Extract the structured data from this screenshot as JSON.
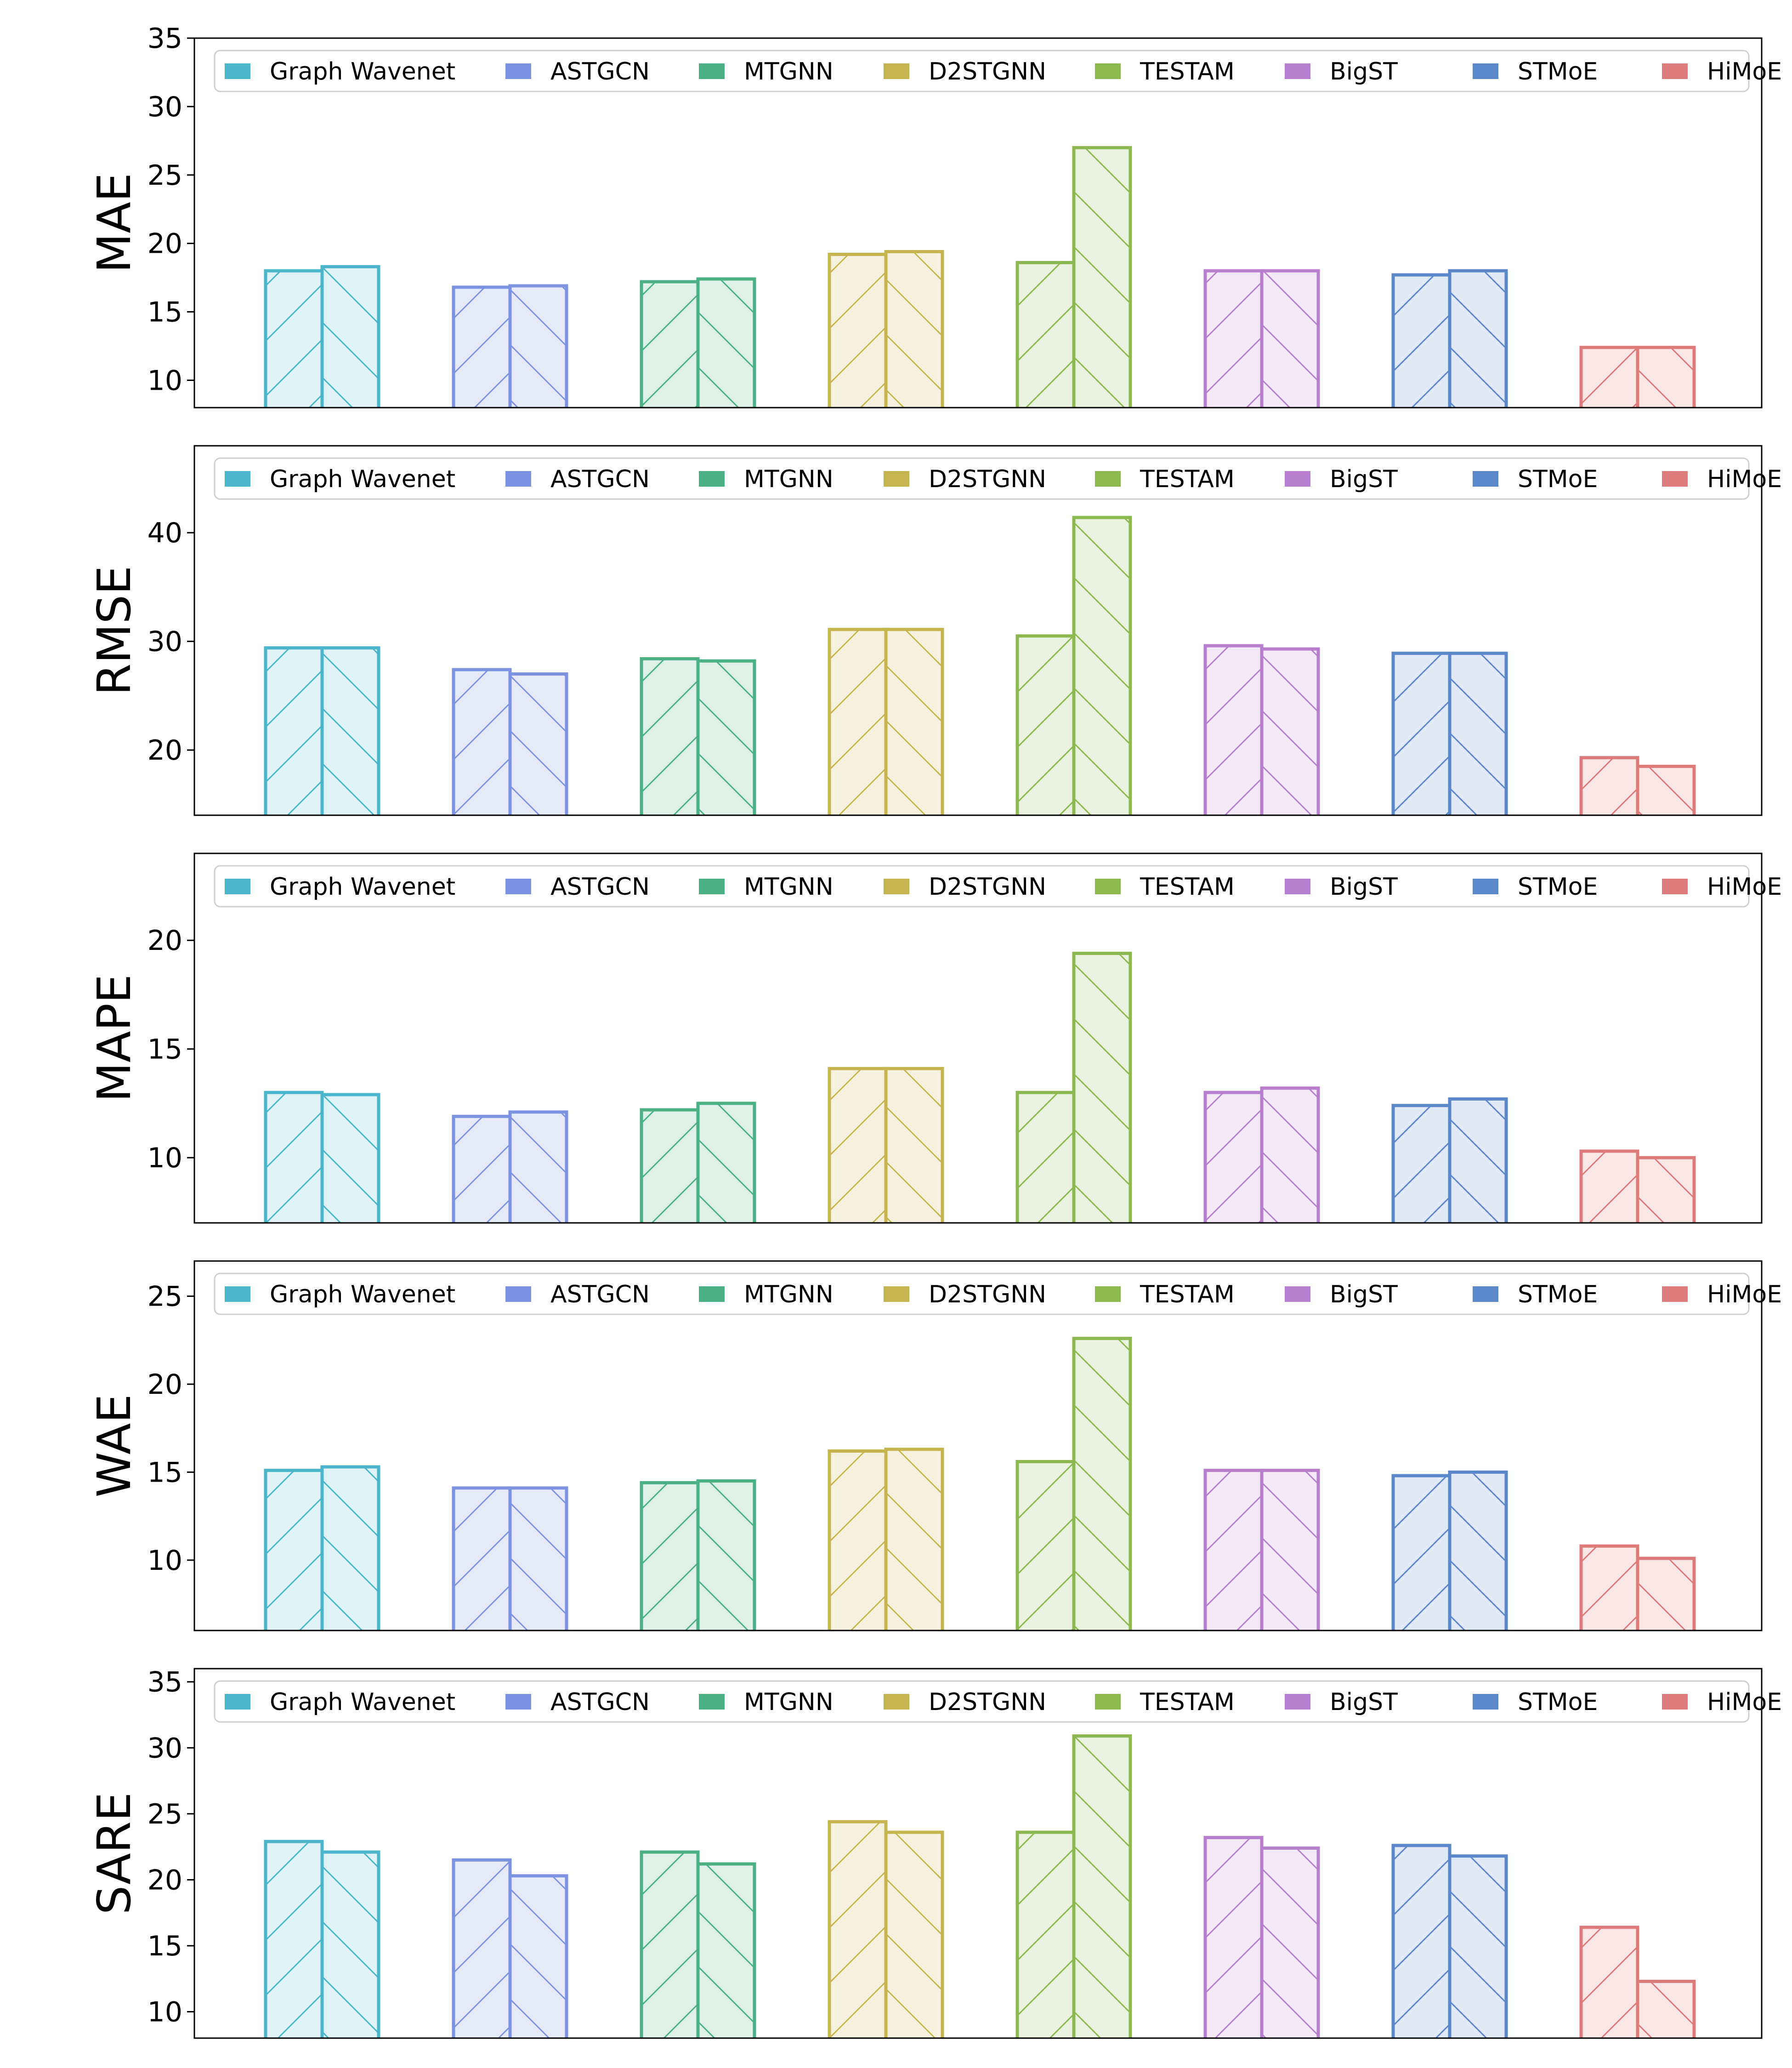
{
  "chart_data": [
    {
      "type": "bar",
      "ylabel": "MAE",
      "ylim": [
        8,
        35
      ],
      "yticks": [
        10,
        15,
        20,
        25,
        30,
        35
      ],
      "hatch": [
        "/",
        "\\"
      ],
      "legend": [
        "Graph Wavenet",
        "ASTGCN",
        "MTGNN",
        "D2STGNN",
        "TESTAM",
        "BigST",
        "STMoE",
        "HiMoE"
      ],
      "series": [
        {
          "name": "Graph Wavenet",
          "values": [
            18.0,
            18.3
          ]
        },
        {
          "name": "ASTGCN",
          "values": [
            16.8,
            16.9
          ]
        },
        {
          "name": "MTGNN",
          "values": [
            17.2,
            17.4
          ]
        },
        {
          "name": "D2STGNN",
          "values": [
            19.2,
            19.4
          ]
        },
        {
          "name": "TESTAM",
          "values": [
            18.6,
            27.0
          ]
        },
        {
          "name": "BigST",
          "values": [
            18.0,
            18.0
          ]
        },
        {
          "name": "STMoE",
          "values": [
            17.7,
            18.0
          ]
        },
        {
          "name": "HiMoE",
          "values": [
            12.4,
            12.4
          ]
        }
      ]
    },
    {
      "type": "bar",
      "ylabel": "RMSE",
      "ylim": [
        14,
        48
      ],
      "yticks": [
        20,
        30,
        40
      ],
      "hatch": [
        "/",
        "\\"
      ],
      "legend": [
        "Graph Wavenet",
        "ASTGCN",
        "MTGNN",
        "D2STGNN",
        "TESTAM",
        "BigST",
        "STMoE",
        "HiMoE"
      ],
      "series": [
        {
          "name": "Graph Wavenet",
          "values": [
            29.4,
            29.4
          ]
        },
        {
          "name": "ASTGCN",
          "values": [
            27.4,
            27.0
          ]
        },
        {
          "name": "MTGNN",
          "values": [
            28.4,
            28.2
          ]
        },
        {
          "name": "D2STGNN",
          "values": [
            31.1,
            31.1
          ]
        },
        {
          "name": "TESTAM",
          "values": [
            30.5,
            41.4
          ]
        },
        {
          "name": "BigST",
          "values": [
            29.6,
            29.3
          ]
        },
        {
          "name": "STMoE",
          "values": [
            28.9,
            28.9
          ]
        },
        {
          "name": "HiMoE",
          "values": [
            19.3,
            18.5
          ]
        }
      ]
    },
    {
      "type": "bar",
      "ylabel": "MAPE",
      "ylim": [
        7,
        24
      ],
      "yticks": [
        10,
        15,
        20
      ],
      "hatch": [
        "/",
        "\\"
      ],
      "legend": [
        "Graph Wavenet",
        "ASTGCN",
        "MTGNN",
        "D2STGNN",
        "TESTAM",
        "BigST",
        "STMoE",
        "HiMoE"
      ],
      "series": [
        {
          "name": "Graph Wavenet",
          "values": [
            13.0,
            12.9
          ]
        },
        {
          "name": "ASTGCN",
          "values": [
            11.9,
            12.1
          ]
        },
        {
          "name": "MTGNN",
          "values": [
            12.2,
            12.5
          ]
        },
        {
          "name": "D2STGNN",
          "values": [
            14.1,
            14.1
          ]
        },
        {
          "name": "TESTAM",
          "values": [
            13.0,
            19.4
          ]
        },
        {
          "name": "BigST",
          "values": [
            13.0,
            13.2
          ]
        },
        {
          "name": "STMoE",
          "values": [
            12.4,
            12.7
          ]
        },
        {
          "name": "HiMoE",
          "values": [
            10.3,
            10.0
          ]
        }
      ]
    },
    {
      "type": "bar",
      "ylabel": "WAE",
      "ylim": [
        6,
        27
      ],
      "yticks": [
        10,
        15,
        20,
        25
      ],
      "hatch": [
        "/",
        "\\"
      ],
      "legend": [
        "Graph Wavenet",
        "ASTGCN",
        "MTGNN",
        "D2STGNN",
        "TESTAM",
        "BigST",
        "STMoE",
        "HiMoE"
      ],
      "series": [
        {
          "name": "Graph Wavenet",
          "values": [
            15.1,
            15.3
          ]
        },
        {
          "name": "ASTGCN",
          "values": [
            14.1,
            14.1
          ]
        },
        {
          "name": "MTGNN",
          "values": [
            14.4,
            14.5
          ]
        },
        {
          "name": "D2STGNN",
          "values": [
            16.2,
            16.3
          ]
        },
        {
          "name": "TESTAM",
          "values": [
            15.6,
            22.6
          ]
        },
        {
          "name": "BigST",
          "values": [
            15.1,
            15.1
          ]
        },
        {
          "name": "STMoE",
          "values": [
            14.8,
            15.0
          ]
        },
        {
          "name": "HiMoE",
          "values": [
            10.8,
            10.1
          ]
        }
      ]
    },
    {
      "type": "bar",
      "ylabel": "SARE",
      "ylim": [
        8,
        36
      ],
      "yticks": [
        10,
        15,
        20,
        25,
        30,
        35
      ],
      "hatch": [
        "/",
        "\\"
      ],
      "legend": [
        "Graph Wavenet",
        "ASTGCN",
        "MTGNN",
        "D2STGNN",
        "TESTAM",
        "BigST",
        "STMoE",
        "HiMoE"
      ],
      "series": [
        {
          "name": "Graph Wavenet",
          "values": [
            22.9,
            22.1
          ]
        },
        {
          "name": "ASTGCN",
          "values": [
            21.5,
            20.3
          ]
        },
        {
          "name": "MTGNN",
          "values": [
            22.1,
            21.2
          ]
        },
        {
          "name": "D2STGNN",
          "values": [
            24.4,
            23.6
          ]
        },
        {
          "name": "TESTAM",
          "values": [
            23.6,
            30.9
          ]
        },
        {
          "name": "BigST",
          "values": [
            23.2,
            22.4
          ]
        },
        {
          "name": "STMoE",
          "values": [
            22.6,
            21.8
          ]
        },
        {
          "name": "HiMoE",
          "values": [
            16.4,
            12.3
          ]
        }
      ]
    }
  ],
  "colors": {
    "Graph Wavenet": "#4bb5cc",
    "ASTGCN": "#7b93e0",
    "MTGNN": "#4bb083",
    "D2STGNN": "#c6b44f",
    "TESTAM": "#8bb84f",
    "BigST": "#b87fcf",
    "STMoE": "#5b88cb",
    "HiMoE": "#dd7b7b"
  }
}
